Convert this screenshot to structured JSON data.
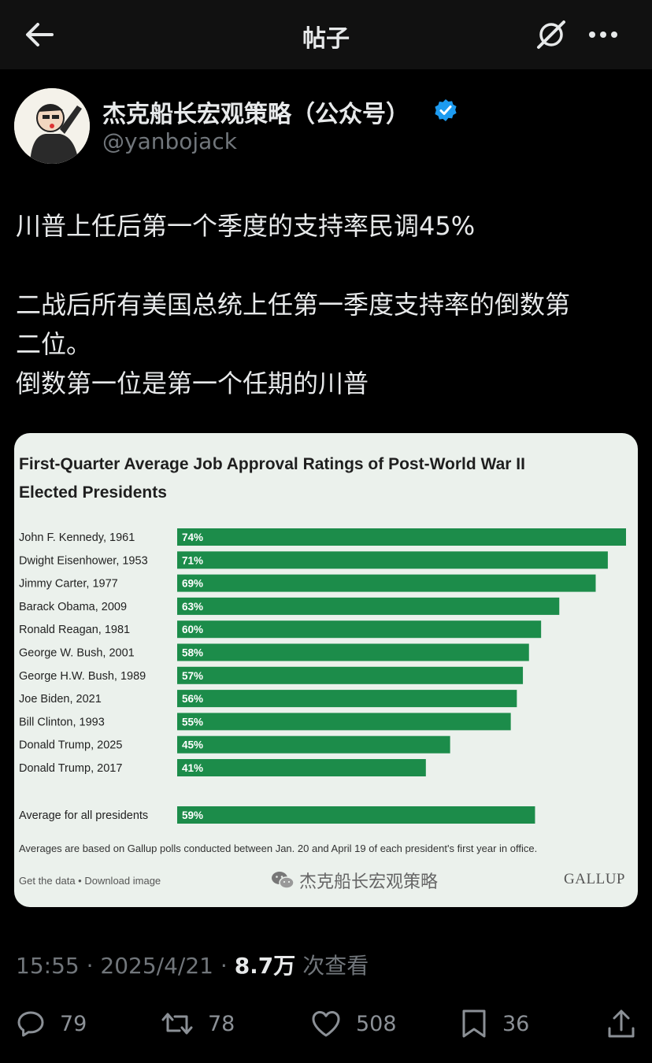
{
  "header": {
    "title": "帖子"
  },
  "author": {
    "name": "杰克船长宏观策略（公众号）",
    "handle": "@yanbojack"
  },
  "post": {
    "lines": [
      "川普上任后第一个季度的支持率民调45%",
      "二战后所有美国总统上任第一季度支持率的倒数第",
      "二位。",
      "倒数第一位是第一个任期的川普"
    ]
  },
  "chart_card": {
    "title_line1": "First-Quarter Average Job Approval Ratings of Post-World War II",
    "title_line2": "Elected Presidents",
    "footnote": "Averages are based on Gallup polls conducted between Jan. 20 and April 19 of each president's first year in office.",
    "get_data": "Get the data • Download image",
    "watermark": "杰克船长宏观策略",
    "brand": "GALLUP",
    "bar_color": "#1c8c4a"
  },
  "chart_data": {
    "type": "bar",
    "orientation": "horizontal",
    "title": "First-Quarter Average Job Approval Ratings of Post-World War II Elected Presidents",
    "categories": [
      "John F. Kennedy, 1961",
      "Dwight Eisenhower, 1953",
      "Jimmy Carter, 1977",
      "Barack Obama, 2009",
      "Ronald Reagan, 1981",
      "George W. Bush, 2001",
      "George H.W. Bush, 1989",
      "Joe Biden, 2021",
      "Bill Clinton, 1993",
      "Donald Trump, 2025",
      "Donald Trump, 2017"
    ],
    "values": [
      74,
      71,
      69,
      63,
      60,
      58,
      57,
      56,
      55,
      45,
      41
    ],
    "value_labels": [
      "74%",
      "71%",
      "69%",
      "63%",
      "60%",
      "58%",
      "57%",
      "56%",
      "55%",
      "45%",
      "41%"
    ],
    "average": {
      "label": "Average for all presidents",
      "value": 59,
      "value_label": "59%"
    },
    "xlim": [
      0,
      74
    ]
  },
  "meta": {
    "time": "15:55",
    "date": "2025/4/21",
    "views": "8.7万",
    "views_suffix": "次查看"
  },
  "actions": {
    "replies": "79",
    "reposts": "78",
    "likes": "508",
    "bookmarks": "36"
  }
}
